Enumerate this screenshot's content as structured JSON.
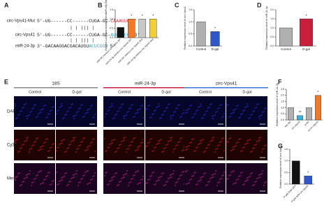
{
  "panel_a": {
    "label": "A",
    "rows": [
      {
        "name": "circ-Vps41-Mut",
        "seq": "5'-UG------CC------CUGA-GC-",
        "site": "CAAAUUG",
        "end": "3'",
        "site_color": "#e0303a"
      },
      {
        "name": "circ-Vps41",
        "seq": "5'-UG------CC------CUGA-GC-",
        "site": "AUGGGCCA",
        "end": "3'",
        "site_color": "#2aa8d8"
      },
      {
        "name": "miR-24-3p",
        "seq": "3'-GACAAGGACGACAUGU",
        "site": "ACUCGGU",
        "end": "5'",
        "site_color": "#2aa8d8"
      }
    ]
  },
  "chart_data": [
    {
      "type": "bar",
      "panel": "B",
      "y_label": "Relative Luciferase Activity (Renilla/Firefly Ratio)",
      "categories": [
        "miR-NC mimics+circ-Vps41 WT",
        "miR-24-3p mimics+circ-Vps41 WT",
        "miR-NC mimics+circ-Vps41 Mut",
        "miR-24-3p mimics+circ-Vps41 Mut"
      ],
      "values": [
        0.55,
        1.0,
        1.0,
        1.0
      ],
      "colors": [
        "#111111",
        "#f07a2a",
        "#c8c8c8",
        "#f2d030"
      ],
      "significance": [
        null,
        "*",
        "*",
        "*"
      ],
      "ylim": [
        0,
        1.5
      ],
      "yticks": [
        {
          "value": 0,
          "label": "0.0"
        },
        0.5,
        {
          "value": 1,
          "label": "1.0"
        },
        1.5
      ]
    },
    {
      "type": "bar",
      "panel": "C",
      "y_label": "Relative expression level of circ-Vps41",
      "categories": [
        "Control",
        "D-gal"
      ],
      "values": [
        1.0,
        0.6
      ],
      "colors": [
        "#b0b0b0",
        "#2f57c8"
      ],
      "significance": [
        null,
        "*"
      ],
      "ylim": [
        0,
        1.5
      ],
      "yticks": [
        {
          "value": 0,
          "label": "0.0"
        },
        0.5,
        {
          "value": 1,
          "label": "1.0"
        },
        1.5
      ]
    },
    {
      "type": "bar",
      "panel": "D",
      "y_label": "Relative expression level of miR-24-3p",
      "categories": [
        "Control",
        "D-gal"
      ],
      "values": [
        1.0,
        1.5
      ],
      "colors": [
        "#b0b0b0",
        "#c8203c"
      ],
      "significance": [
        null,
        "*"
      ],
      "ylim": [
        0,
        2
      ],
      "yticks": [
        {
          "value": 0,
          "label": "0.0"
        },
        0.5,
        {
          "value": 1,
          "label": "1.0"
        },
        1.5,
        {
          "value": 2,
          "label": "2.0"
        }
      ]
    },
    {
      "type": "bar",
      "panel": "F",
      "y_label": "Relative expression level of miR-24-3p",
      "categories": [
        "Vec-NC",
        "circ-Vps41",
        "si-NC",
        "si-circ-Vps41"
      ],
      "values": [
        1.0,
        0.35,
        1.0,
        2.0
      ],
      "colors": [
        "#b0b0b0",
        "#3ab0e0",
        "#b0b0b0",
        "#f07a2a"
      ],
      "significance": [
        null,
        "**",
        null,
        "*"
      ],
      "ylim": [
        0,
        2.5
      ],
      "yticks": [
        {
          "value": 0,
          "label": "0.0"
        },
        0.5,
        {
          "value": 1,
          "label": "1.0"
        },
        1.5,
        {
          "value": 2,
          "label": "2.0"
        },
        2.5
      ]
    },
    {
      "type": "bar",
      "panel": "G",
      "y_label": "Relative expression level of circ-Vps41",
      "categories": [
        "D-gal+AAV-GFP",
        "D-gal+AAV-circ-Vps41"
      ],
      "values": [
        1.0,
        0.35
      ],
      "colors": [
        "#111111",
        "#2f57c8"
      ],
      "significance": [
        null,
        "*"
      ],
      "ylim": [
        0,
        1.5
      ],
      "yticks": [
        {
          "value": 0,
          "label": "0.0"
        },
        0.5,
        {
          "value": 1,
          "label": "1.0"
        },
        1.5
      ]
    }
  ],
  "panel_e": {
    "label": "E",
    "groups": [
      {
        "title": "18S",
        "color": "#888888"
      },
      {
        "title": "miR-24-3p",
        "color": "#c8203c"
      },
      {
        "title": "circ-Vps41",
        "color": "#2f7ad8"
      }
    ],
    "conditions": [
      "Control",
      "D-gal"
    ],
    "rows": [
      "DAPI",
      "Cy3",
      "Merge"
    ]
  }
}
